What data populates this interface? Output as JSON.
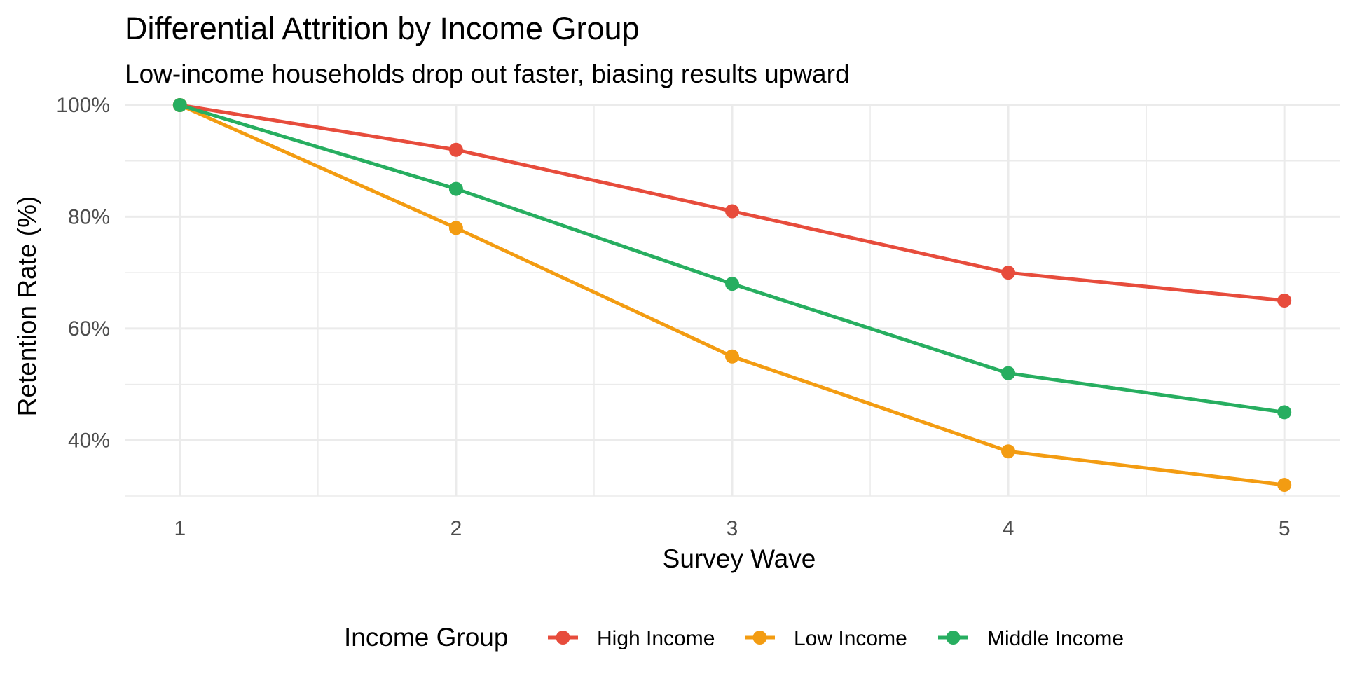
{
  "chart_data": {
    "type": "line",
    "title": "Differential Attrition by Income Group",
    "subtitle": "Low-income households drop out faster, biasing results upward",
    "xlabel": "Survey Wave",
    "ylabel": "Retention Rate (%)",
    "x": [
      1,
      2,
      3,
      4,
      5
    ],
    "x_tick_labels": [
      "1",
      "2",
      "3",
      "4",
      "5"
    ],
    "xlim": [
      0.8,
      5.2
    ],
    "ylim": [
      30,
      100
    ],
    "y_ticks": [
      40,
      60,
      80,
      100
    ],
    "y_tick_labels": [
      "40%",
      "60%",
      "80%",
      "100%"
    ],
    "grid": true,
    "legend": {
      "title": "Income Group",
      "position": "bottom"
    },
    "series": [
      {
        "name": "High Income",
        "color": "#e74c3c",
        "values": [
          100,
          92,
          81,
          70,
          65
        ]
      },
      {
        "name": "Low Income",
        "color": "#f39c12",
        "values": [
          100,
          78,
          55,
          38,
          32
        ]
      },
      {
        "name": "Middle Income",
        "color": "#27ae60",
        "values": [
          100,
          85,
          68,
          52,
          45
        ]
      }
    ]
  }
}
